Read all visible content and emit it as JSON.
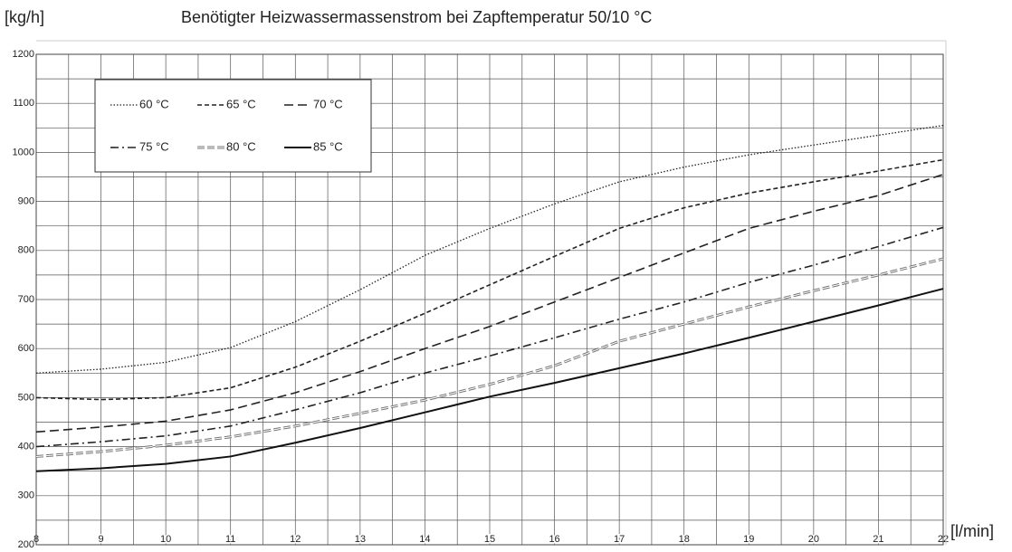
{
  "chart_data": {
    "type": "line",
    "title": "Benötigter Heizwassermassenstrom bei Zapftemperatur 50/10 °C",
    "y_label": "[kg/h]",
    "x_label": "[l/min]",
    "x": [
      8,
      9,
      10,
      11,
      12,
      13,
      14,
      15,
      16,
      17,
      18,
      19,
      20,
      21,
      22
    ],
    "xlim": [
      8,
      22
    ],
    "xticks": [
      8,
      9,
      10,
      11,
      12,
      13,
      14,
      15,
      16,
      17,
      18,
      19,
      20,
      21,
      22
    ],
    "x_minor_ticks": [
      8.5,
      9.5,
      10.5,
      11.5,
      12.5,
      13.5,
      14.5,
      15.5,
      16.5,
      17.5,
      18.5,
      19.5,
      20.5,
      21.5
    ],
    "ylim": [
      200,
      1200
    ],
    "yticks": [
      200,
      300,
      400,
      500,
      600,
      700,
      800,
      900,
      1000,
      1100,
      1200
    ],
    "y_minor_ticks": [
      250,
      350,
      450,
      550,
      650,
      750,
      850,
      950,
      1050,
      1150
    ],
    "grid": true,
    "legend": "upper left",
    "series": [
      {
        "name": "60 °C",
        "color": "#222222",
        "dash": "dotted",
        "values": [
          550,
          558,
          572,
          602,
          655,
          720,
          790,
          845,
          895,
          940,
          970,
          995,
          1015,
          1035,
          1055
        ]
      },
      {
        "name": "65 °C",
        "color": "#222222",
        "dash": "short",
        "values": [
          500,
          496,
          500,
          520,
          562,
          615,
          672,
          730,
          788,
          845,
          887,
          917,
          940,
          962,
          985
        ]
      },
      {
        "name": "70 °C",
        "color": "#222222",
        "dash": "long",
        "values": [
          430,
          440,
          452,
          475,
          510,
          553,
          600,
          645,
          695,
          745,
          795,
          845,
          880,
          912,
          955
        ]
      },
      {
        "name": "75 °C",
        "color": "#222222",
        "dash": "dashdot",
        "values": [
          400,
          410,
          422,
          442,
          475,
          510,
          550,
          585,
          622,
          660,
          695,
          735,
          770,
          808,
          847
        ]
      },
      {
        "name": "80 °C",
        "color": "#777777",
        "dash": "double",
        "values": [
          380,
          390,
          403,
          420,
          442,
          468,
          495,
          527,
          565,
          615,
          650,
          685,
          718,
          750,
          783
        ]
      },
      {
        "name": "85 °C",
        "color": "#111111",
        "dash": "solid",
        "values": [
          350,
          356,
          365,
          380,
          408,
          438,
          470,
          502,
          530,
          560,
          590,
          622,
          655,
          688,
          722
        ]
      }
    ]
  }
}
